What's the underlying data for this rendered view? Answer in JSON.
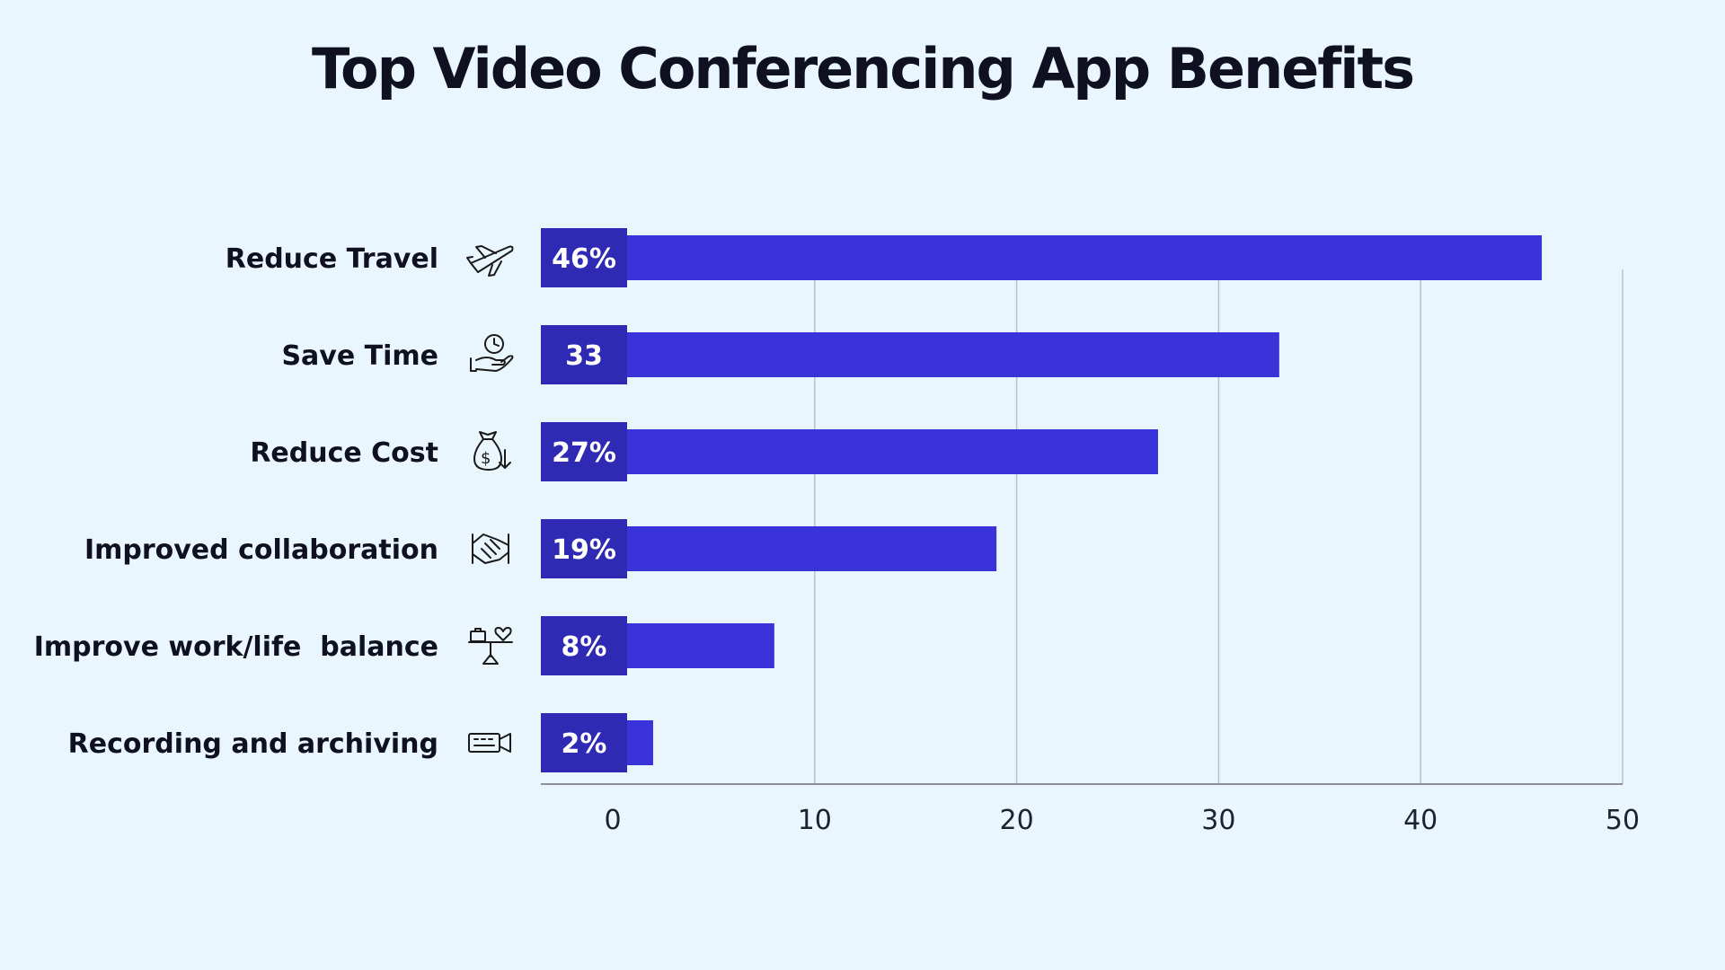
{
  "chart_data": {
    "type": "bar",
    "orientation": "horizontal",
    "title": "Top Video Conferencing App Benefits",
    "categories": [
      "Reduce Travel",
      "Save Time",
      "Reduce Cost",
      "Improved collaboration",
      "Improve work/life  balance",
      "Recording and archiving"
    ],
    "values": [
      46,
      33,
      27,
      19,
      8,
      2
    ],
    "data_labels": [
      "46%",
      "33",
      "27%",
      "19%",
      "8%",
      "2%"
    ],
    "icons": [
      "airplane-icon",
      "hand-clock-icon",
      "money-bag-icon",
      "handshake-icon",
      "work-life-scale-icon",
      "video-camera-icon"
    ],
    "xlim": [
      0,
      50
    ],
    "xticks": [
      0,
      10,
      20,
      30,
      40,
      50
    ],
    "xlabel": "",
    "ylabel": "",
    "grid": "vertical",
    "legend": "none",
    "colors": {
      "background": "#eaf6fe",
      "bar": "#3a33d9",
      "bar_label_box": "#2f2ab4",
      "grid": "#b8c3cc",
      "text": "#0f1020"
    }
  }
}
